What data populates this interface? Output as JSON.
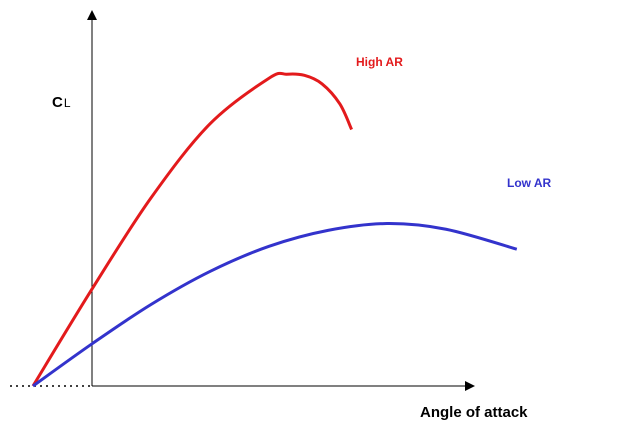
{
  "chart_data": {
    "type": "line",
    "title": "",
    "xlabel": "Angle of attack",
    "ylabel_main": "C",
    "ylabel_sub": "L",
    "xlim": [
      -1,
      7.3
    ],
    "ylim": [
      0,
      6.4
    ],
    "grid": false,
    "legend": "inline labels",
    "zero_extension_style": "dotted",
    "series": [
      {
        "name": "High AR",
        "color": "#e31a1c",
        "x": [
          -1,
          0,
          1,
          2,
          3,
          3.3,
          3.6,
          3.9,
          4.2,
          4.4
        ],
        "y": [
          0,
          1.7,
          3.3,
          4.6,
          5.4,
          5.47,
          5.45,
          5.3,
          4.95,
          4.5
        ]
      },
      {
        "name": "Low AR",
        "color": "#3333cc",
        "x": [
          -1,
          0,
          1,
          2,
          3,
          4,
          5,
          6,
          7.2
        ],
        "y": [
          0,
          0.74,
          1.43,
          2.01,
          2.45,
          2.73,
          2.85,
          2.75,
          2.4
        ]
      }
    ]
  }
}
